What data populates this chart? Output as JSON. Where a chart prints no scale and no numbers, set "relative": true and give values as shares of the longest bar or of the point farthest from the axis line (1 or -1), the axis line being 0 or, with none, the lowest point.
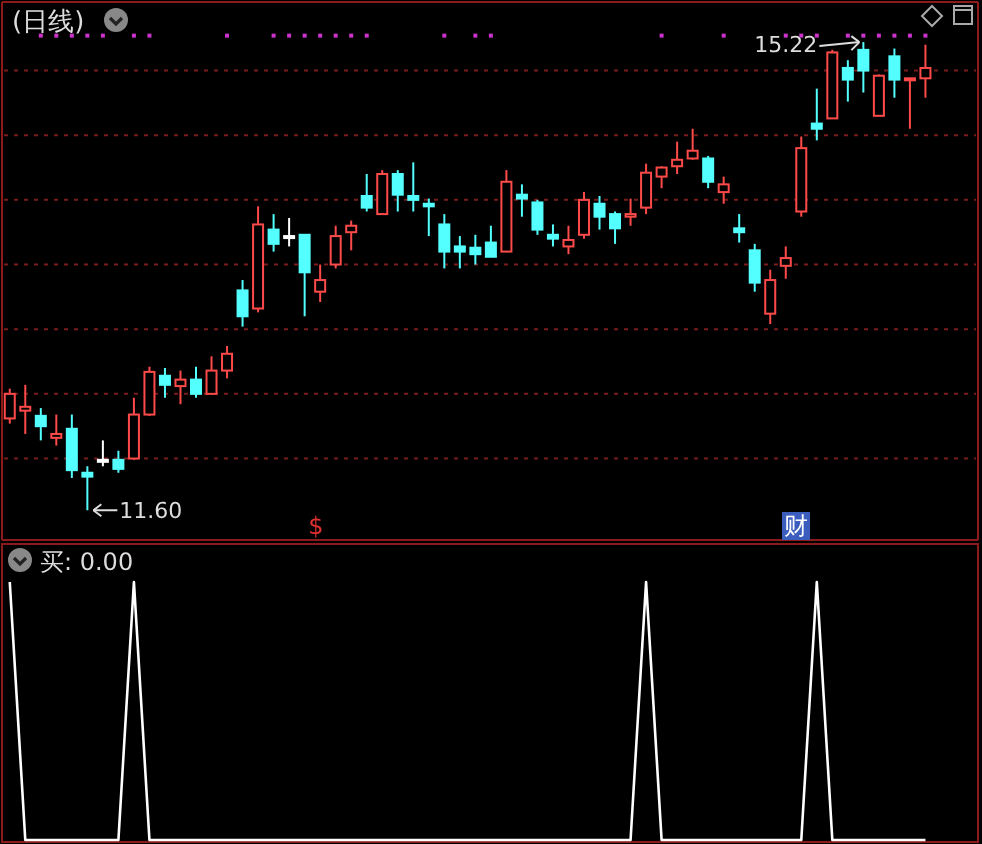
{
  "chart_data": [
    {
      "type": "candlestick",
      "title": "(日线)",
      "grid": "y",
      "marker": "square",
      "categories": [
        null,
        null,
        null,
        null,
        null,
        null,
        null,
        null,
        null,
        null,
        null,
        null,
        null,
        null,
        null,
        null,
        null,
        null,
        null,
        null,
        null,
        null,
        null,
        null,
        null,
        null,
        null,
        null,
        null,
        null,
        null,
        null,
        null,
        null,
        null,
        null,
        null,
        null,
        null,
        null,
        null,
        null,
        null,
        null,
        null,
        null,
        null,
        null,
        null,
        null,
        null,
        null,
        null,
        null,
        null,
        null,
        null,
        null,
        null,
        null
      ],
      "ohlc": [
        [
          12.31,
          12.54,
          12.27,
          12.5
        ],
        [
          12.37,
          12.57,
          12.19,
          12.4
        ],
        [
          12.33,
          12.39,
          12.14,
          12.25
        ],
        [
          12.16,
          12.34,
          12.1,
          12.19
        ],
        [
          12.23,
          12.34,
          11.85,
          11.91
        ],
        [
          11.89,
          11.94,
          11.6,
          11.86
        ],
        [
          11.99,
          12.14,
          11.94,
          11.99
        ],
        [
          11.99,
          12.06,
          11.89,
          11.92
        ],
        [
          12.0,
          12.47,
          11.99,
          12.34
        ],
        [
          12.34,
          12.71,
          12.33,
          12.67
        ],
        [
          12.64,
          12.7,
          12.47,
          12.57
        ],
        [
          12.56,
          12.68,
          12.42,
          12.61
        ],
        [
          12.61,
          12.71,
          12.47,
          12.5
        ],
        [
          12.5,
          12.79,
          12.5,
          12.68
        ],
        [
          12.68,
          12.87,
          12.62,
          12.81
        ],
        [
          13.3,
          13.38,
          13.02,
          13.1
        ],
        [
          13.16,
          13.95,
          13.13,
          13.81
        ],
        [
          13.77,
          13.89,
          13.6,
          13.66
        ],
        [
          13.72,
          13.86,
          13.64,
          13.72
        ],
        [
          13.73,
          13.73,
          13.1,
          13.44
        ],
        [
          13.29,
          13.5,
          13.21,
          13.38
        ],
        [
          13.5,
          13.8,
          13.47,
          13.72
        ],
        [
          13.75,
          13.84,
          13.61,
          13.8
        ],
        [
          14.03,
          14.2,
          13.91,
          13.94
        ],
        [
          13.89,
          14.23,
          13.89,
          14.2
        ],
        [
          14.2,
          14.23,
          13.91,
          14.04
        ],
        [
          14.03,
          14.29,
          13.91,
          14.0
        ],
        [
          13.97,
          14.01,
          13.72,
          13.95
        ],
        [
          13.81,
          13.89,
          13.47,
          13.6
        ],
        [
          13.64,
          13.72,
          13.47,
          13.6
        ],
        [
          13.63,
          13.73,
          13.5,
          13.58
        ],
        [
          13.67,
          13.8,
          13.56,
          13.56
        ],
        [
          13.6,
          14.23,
          13.6,
          14.14
        ],
        [
          14.04,
          14.12,
          13.87,
          14.01
        ],
        [
          13.98,
          14.0,
          13.73,
          13.77
        ],
        [
          13.73,
          13.81,
          13.64,
          13.7
        ],
        [
          13.64,
          13.8,
          13.58,
          13.69
        ],
        [
          13.73,
          14.06,
          13.7,
          14.0
        ],
        [
          13.97,
          14.03,
          13.77,
          13.87
        ],
        [
          13.89,
          13.91,
          13.66,
          13.78
        ],
        [
          13.87,
          14.01,
          13.8,
          13.89
        ],
        [
          13.94,
          14.28,
          13.89,
          14.21
        ],
        [
          14.18,
          14.26,
          14.09,
          14.25
        ],
        [
          14.26,
          14.45,
          14.2,
          14.31
        ],
        [
          14.32,
          14.55,
          14.31,
          14.38
        ],
        [
          14.32,
          14.34,
          14.09,
          14.14
        ],
        [
          14.06,
          14.18,
          13.97,
          14.12
        ],
        [
          13.78,
          13.89,
          13.67,
          13.75
        ],
        [
          13.61,
          13.66,
          13.29,
          13.36
        ],
        [
          13.12,
          13.46,
          13.04,
          13.38
        ],
        [
          13.49,
          13.64,
          13.39,
          13.55
        ],
        [
          13.91,
          14.49,
          13.87,
          14.4
        ],
        [
          14.59,
          14.86,
          14.46,
          14.55
        ],
        [
          14.63,
          15.16,
          14.63,
          15.14
        ],
        [
          15.02,
          15.08,
          14.76,
          14.93
        ],
        [
          15.16,
          15.22,
          14.83,
          15.0
        ],
        [
          14.65,
          14.97,
          14.65,
          14.96
        ],
        [
          15.11,
          15.17,
          14.79,
          14.93
        ],
        [
          14.93,
          14.94,
          14.55,
          14.94
        ],
        [
          14.94,
          15.2,
          14.79,
          15.02
        ]
      ],
      "series": [
        {
          "type": "scatter",
          "color": "#cc33cc",
          "values": [
            null,
            null,
            15.27,
            15.27,
            15.27,
            15.27,
            15.27,
            null,
            15.27,
            15.27,
            null,
            null,
            null,
            null,
            15.27,
            null,
            null,
            15.27,
            15.27,
            15.27,
            15.27,
            15.27,
            15.27,
            15.27,
            null,
            null,
            null,
            null,
            15.27,
            null,
            15.27,
            15.27,
            null,
            null,
            null,
            null,
            null,
            null,
            null,
            null,
            null,
            null,
            15.27,
            null,
            null,
            null,
            15.27,
            null,
            null,
            null,
            15.27,
            15.27,
            15.27,
            null,
            15.27,
            15.27,
            15.27,
            15.27,
            15.27,
            15.27
          ]
        }
      ],
      "ylim": [
        11.37,
        15.53
      ],
      "yticks": [
        {
          "value": 12,
          "label": null
        },
        {
          "value": 12.5,
          "label": null
        },
        {
          "value": 13,
          "label": null
        },
        {
          "value": 13.5,
          "label": null
        },
        {
          "value": 14,
          "label": null
        },
        {
          "value": 14.5,
          "label": null
        },
        {
          "value": 15,
          "label": null
        }
      ],
      "annotations": [
        "11.60",
        "15.22",
        "$",
        "财"
      ]
    },
    {
      "type": "line",
      "title": "买: 0.00",
      "relative": true,
      "categories": [
        null,
        null,
        null,
        null,
        null,
        null,
        null,
        null,
        null,
        null,
        null,
        null,
        null,
        null,
        null,
        null,
        null,
        null,
        null,
        null,
        null,
        null,
        null,
        null,
        null,
        null,
        null,
        null,
        null,
        null,
        null,
        null,
        null,
        null,
        null,
        null,
        null,
        null,
        null,
        null,
        null,
        null,
        null,
        null,
        null,
        null,
        null,
        null,
        null,
        null,
        null,
        null,
        null,
        null,
        null,
        null,
        null,
        null,
        null,
        null
      ],
      "series": [
        {
          "color": "#ffffff",
          "values": [
            1,
            0,
            0,
            0,
            0,
            0,
            0,
            0,
            1,
            0,
            0,
            0,
            0,
            0,
            0,
            0,
            0,
            0,
            0,
            0,
            0,
            0,
            0,
            0,
            0,
            0,
            0,
            0,
            0,
            0,
            0,
            0,
            0,
            0,
            0,
            0,
            0,
            0,
            0,
            0,
            0,
            1,
            0,
            0,
            0,
            0,
            0,
            0,
            0,
            0,
            0,
            0,
            1,
            0,
            0,
            0,
            0,
            0,
            0,
            0
          ]
        }
      ]
    }
  ]
}
